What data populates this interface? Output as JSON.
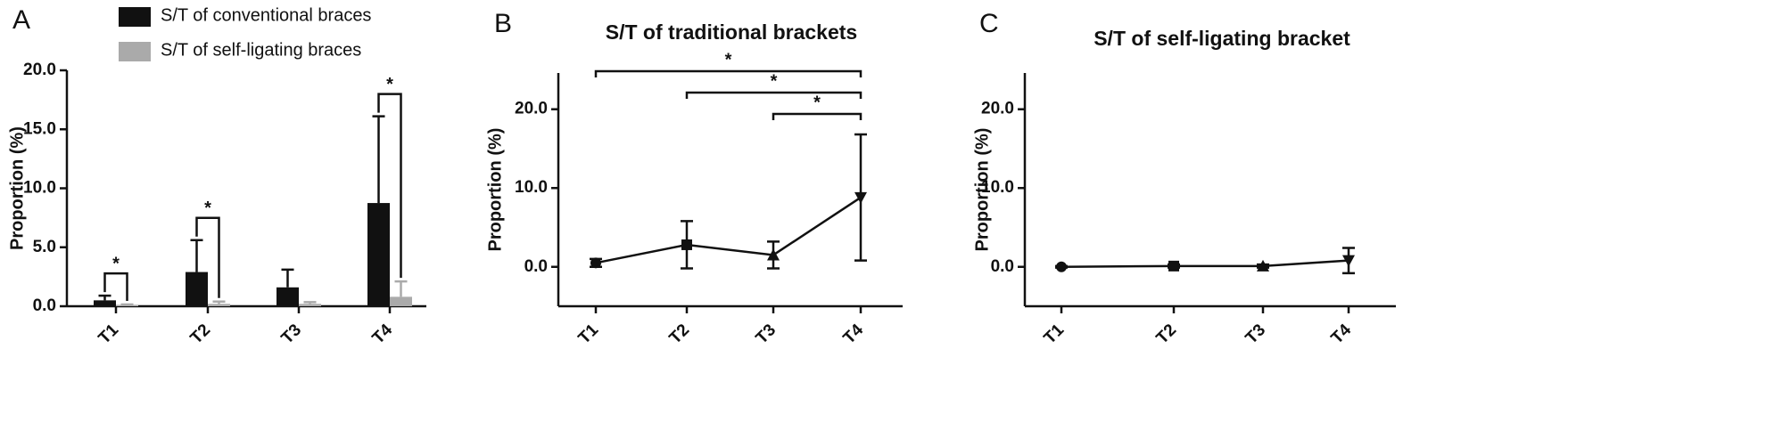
{
  "chart_data": [
    {
      "type": "bar",
      "panel": "A",
      "y_label": "Proportion (%)",
      "categories": [
        "T1",
        "T2",
        "T3",
        "T4"
      ],
      "series": [
        {
          "name": "S/T of conventional braces",
          "color": "#111111",
          "values": [
            0.5,
            2.9,
            1.6,
            8.75
          ],
          "errors": [
            0.4,
            2.7,
            1.5,
            7.35
          ]
        },
        {
          "name": "S/T of self-ligating braces",
          "color": "#aaaaaa",
          "values": [
            0.1,
            0.2,
            0.2,
            0.8
          ],
          "errors": [
            0.05,
            0.2,
            0.15,
            1.3
          ]
        }
      ],
      "ylim": [
        0,
        20
      ],
      "yticks": [
        {
          "value": 0,
          "label": "0.0"
        },
        {
          "value": 5,
          "label": "5.0"
        },
        {
          "value": 10,
          "label": "10.0"
        },
        {
          "value": 15,
          "label": "15.0"
        },
        {
          "value": 20,
          "label": "20.0"
        }
      ],
      "significance": [
        {
          "category": "T1",
          "label": "*"
        },
        {
          "category": "T2",
          "label": "*"
        },
        {
          "category": "T4",
          "label": "*"
        }
      ]
    },
    {
      "type": "line",
      "panel": "B",
      "title": "S/T of traditional brackets",
      "y_label": "Proportion (%)",
      "categories": [
        "T1",
        "T2",
        "T3",
        "T4"
      ],
      "series": [
        {
          "color": "#111111",
          "values": [
            0.5,
            2.8,
            1.5,
            8.8
          ],
          "errors": [
            0.5,
            3.0,
            1.7,
            8.0
          ]
        }
      ],
      "ylim": [
        -5,
        24.6
      ],
      "yticks": [
        {
          "value": 0,
          "label": "0.0"
        },
        {
          "value": 10,
          "label": "10.0"
        },
        {
          "value": 20,
          "label": "20.0"
        }
      ],
      "significance": [
        {
          "from": "T1",
          "to": "T4",
          "label": "*"
        },
        {
          "from": "T2",
          "to": "T4",
          "label": "*"
        },
        {
          "from": "T3",
          "to": "T4",
          "label": "*"
        }
      ]
    },
    {
      "type": "line",
      "panel": "C",
      "title": "S/T of self-ligating bracket",
      "y_label": "Proportion (%)",
      "categories": [
        "T1",
        "T2",
        "T3",
        "T4"
      ],
      "series": [
        {
          "color": "#111111",
          "values": [
            0.0,
            0.1,
            0.1,
            0.8
          ],
          "errors": [
            0.1,
            0.2,
            0.2,
            1.6
          ]
        }
      ],
      "ylim": [
        -5,
        24.6
      ],
      "yticks": [
        {
          "value": 0,
          "label": "0.0"
        },
        {
          "value": 10,
          "label": "10.0"
        },
        {
          "value": 20,
          "label": "20.0"
        }
      ]
    }
  ]
}
